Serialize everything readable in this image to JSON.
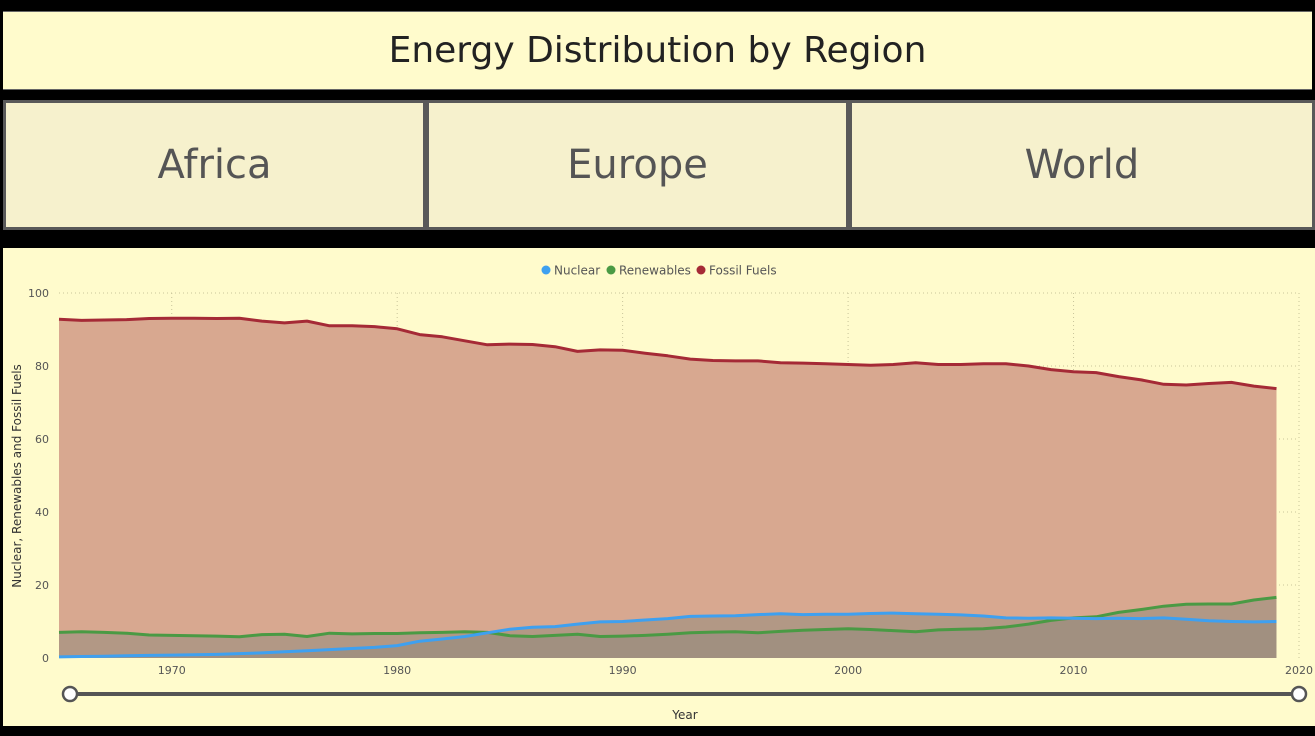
{
  "header": {
    "title": "Energy Distribution by Region"
  },
  "tabs": [
    {
      "label": "Africa"
    },
    {
      "label": "Europe"
    },
    {
      "label": "World"
    }
  ],
  "colors": {
    "nuclear": "#3ea0f0",
    "renewables": "#4a9a44",
    "fossil": "#a52a36",
    "fossil_fill": "#d8a890",
    "overlap_fill": "#948a7c",
    "background": "#fffbcc"
  },
  "chart_data": {
    "type": "area",
    "ylabel": "Nuclear, Renewables and Fossil Fuels",
    "xlabel": "Year",
    "ylim": [
      0,
      100
    ],
    "xlim": [
      1965,
      2020
    ],
    "yticks": [
      0,
      20,
      40,
      60,
      80,
      100
    ],
    "xticks": [
      1970,
      1980,
      1990,
      2000,
      2010,
      2020
    ],
    "grid": true,
    "legend": "top-center",
    "x": [
      1965,
      1966,
      1967,
      1968,
      1969,
      1970,
      1971,
      1972,
      1973,
      1974,
      1975,
      1976,
      1977,
      1978,
      1979,
      1980,
      1981,
      1982,
      1983,
      1984,
      1985,
      1986,
      1987,
      1988,
      1989,
      1990,
      1991,
      1992,
      1993,
      1994,
      1995,
      1996,
      1997,
      1998,
      1999,
      2000,
      2001,
      2002,
      2003,
      2004,
      2005,
      2006,
      2007,
      2008,
      2009,
      2010,
      2011,
      2012,
      2013,
      2014,
      2015,
      2016,
      2017,
      2018,
      2019
    ],
    "series": [
      {
        "name": "Nuclear",
        "values": [
          0.3,
          0.4,
          0.5,
          0.6,
          0.7,
          0.8,
          0.9,
          1.0,
          1.2,
          1.4,
          1.7,
          2.0,
          2.3,
          2.6,
          2.9,
          3.4,
          4.6,
          5.2,
          5.9,
          6.9,
          7.9,
          8.4,
          8.6,
          9.3,
          9.9,
          10.0,
          10.4,
          10.8,
          11.4,
          11.5,
          11.6,
          11.9,
          12.1,
          11.9,
          12.0,
          12.0,
          12.2,
          12.3,
          12.1,
          12.0,
          11.8,
          11.5,
          11.0,
          10.9,
          11.0,
          10.9,
          10.8,
          10.9,
          10.8,
          11.0,
          10.6,
          10.2,
          10.0,
          9.9,
          10.0
        ]
      },
      {
        "name": "Renewables",
        "values": [
          7.0,
          7.2,
          7.0,
          6.8,
          6.3,
          6.2,
          6.1,
          6.0,
          5.8,
          6.4,
          6.5,
          5.9,
          6.8,
          6.6,
          6.7,
          6.7,
          6.9,
          7.0,
          7.2,
          7.0,
          6.1,
          5.9,
          6.2,
          6.5,
          5.9,
          6.0,
          6.2,
          6.5,
          6.9,
          7.1,
          7.2,
          6.9,
          7.3,
          7.6,
          7.8,
          8.0,
          7.8,
          7.5,
          7.2,
          7.7,
          7.9,
          8.0,
          8.5,
          9.3,
          10.3,
          11.0,
          11.3,
          12.5,
          13.3,
          14.2,
          14.7,
          14.8,
          14.8,
          15.9,
          16.6
        ]
      },
      {
        "name": "Fossil Fuels",
        "values": [
          92.8,
          92.5,
          92.6,
          92.7,
          93.0,
          93.1,
          93.1,
          93.0,
          93.1,
          92.3,
          91.8,
          92.3,
          91.0,
          91.0,
          90.8,
          90.2,
          88.6,
          88.0,
          86.9,
          85.8,
          86.0,
          85.9,
          85.3,
          84.0,
          84.4,
          84.3,
          83.5,
          82.8,
          81.9,
          81.5,
          81.4,
          81.4,
          80.9,
          80.8,
          80.6,
          80.4,
          80.2,
          80.4,
          80.9,
          80.4,
          80.4,
          80.6,
          80.6,
          80.0,
          79.0,
          78.4,
          78.2,
          77.1,
          76.2,
          75.0,
          74.8,
          75.2,
          75.5,
          74.5,
          73.8
        ]
      }
    ]
  }
}
